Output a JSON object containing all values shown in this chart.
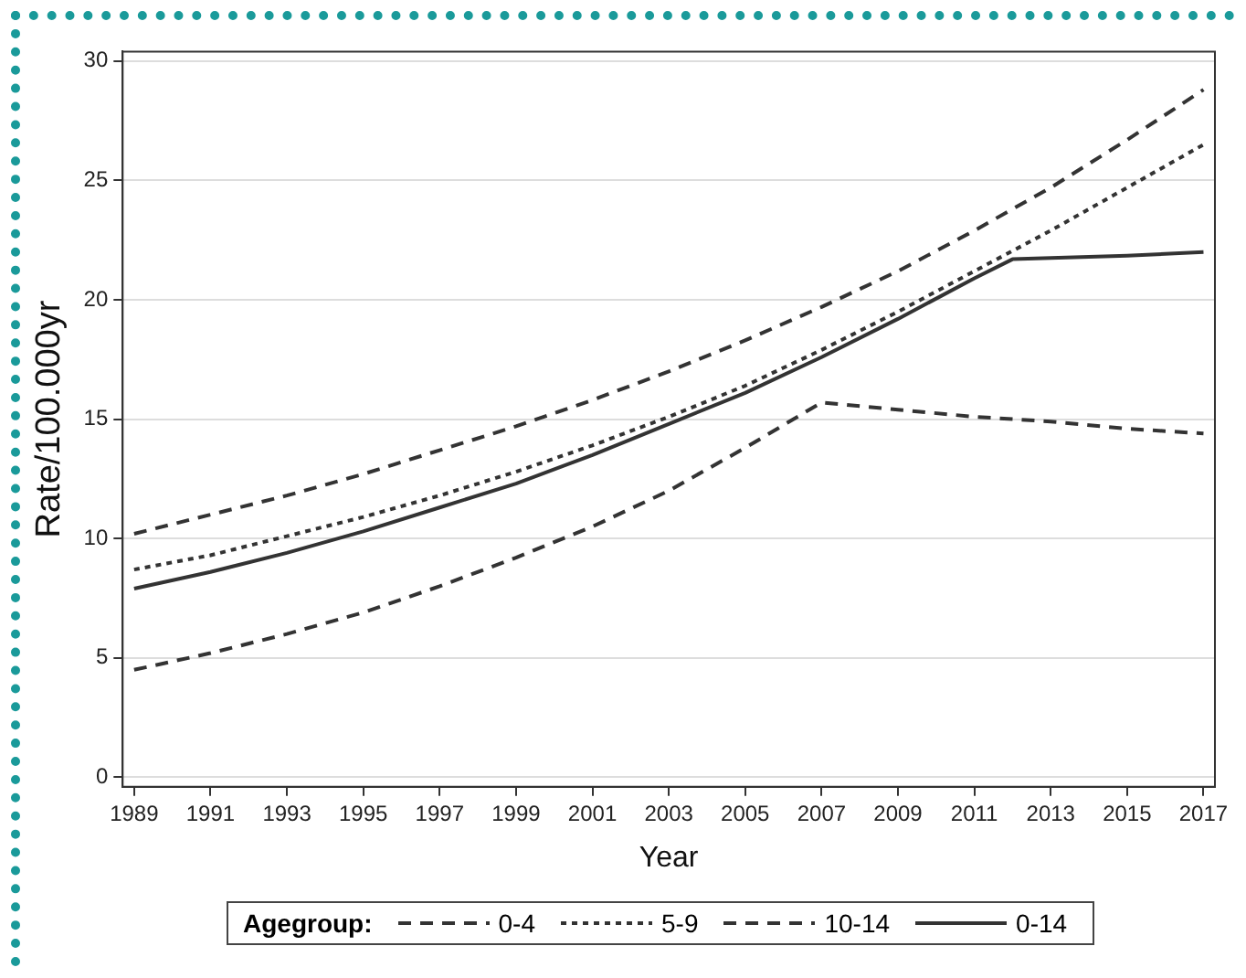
{
  "chart_data": {
    "type": "line",
    "xlabel": "Year",
    "ylabel": "Rate/100.000yr",
    "legend_title": "Agegroup:",
    "legend": "bottom",
    "grid": "y",
    "xlim": [
      1988.7,
      2017.3
    ],
    "xticks": [
      1989,
      1991,
      1993,
      1995,
      1997,
      1999,
      2001,
      2003,
      2005,
      2007,
      2009,
      2011,
      2013,
      2015,
      2017
    ],
    "ylim": [
      -0.4,
      30.4
    ],
    "yticks": [
      0,
      5,
      10,
      15,
      20,
      25,
      30
    ],
    "series": [
      {
        "name": "0-4",
        "color": "#333333",
        "line_style": "dashed",
        "x": [
          1989,
          1991,
          1993,
          1995,
          1997,
          1999,
          2001,
          2003,
          2005,
          2007,
          2009,
          2011,
          2013,
          2015,
          2017
        ],
        "values": [
          4.5,
          5.2,
          6.0,
          6.9,
          8.0,
          9.2,
          10.5,
          12.0,
          13.8,
          15.7,
          15.4,
          15.1,
          14.9,
          14.6,
          14.4
        ]
      },
      {
        "name": "5-9",
        "color": "#333333",
        "line_style": "dotted",
        "x": [
          1989,
          1991,
          1993,
          1995,
          1997,
          1999,
          2001,
          2003,
          2005,
          2007,
          2009,
          2011,
          2013,
          2015,
          2017
        ],
        "values": [
          8.7,
          9.3,
          10.1,
          10.9,
          11.8,
          12.8,
          13.9,
          15.1,
          16.4,
          17.9,
          19.5,
          21.2,
          22.9,
          24.7,
          26.5
        ]
      },
      {
        "name": "10-14",
        "color": "#333333",
        "line_style": "dashed",
        "x": [
          1989,
          1991,
          1993,
          1995,
          1997,
          1999,
          2001,
          2003,
          2005,
          2007,
          2009,
          2011,
          2013,
          2015,
          2017
        ],
        "values": [
          10.2,
          11.0,
          11.8,
          12.7,
          13.7,
          14.7,
          15.8,
          17.0,
          18.3,
          19.7,
          21.2,
          22.9,
          24.7,
          26.7,
          28.8
        ]
      },
      {
        "name": "0-14",
        "color": "#333333",
        "line_style": "solid",
        "x": [
          1989,
          1991,
          1993,
          1995,
          1997,
          1999,
          2001,
          2003,
          2005,
          2007,
          2009,
          2011,
          2012,
          2013,
          2015,
          2017
        ],
        "values": [
          7.9,
          8.6,
          9.4,
          10.3,
          11.3,
          12.3,
          13.5,
          14.8,
          16.1,
          17.6,
          19.2,
          20.9,
          21.7,
          21.75,
          21.85,
          22.0
        ]
      }
    ]
  }
}
